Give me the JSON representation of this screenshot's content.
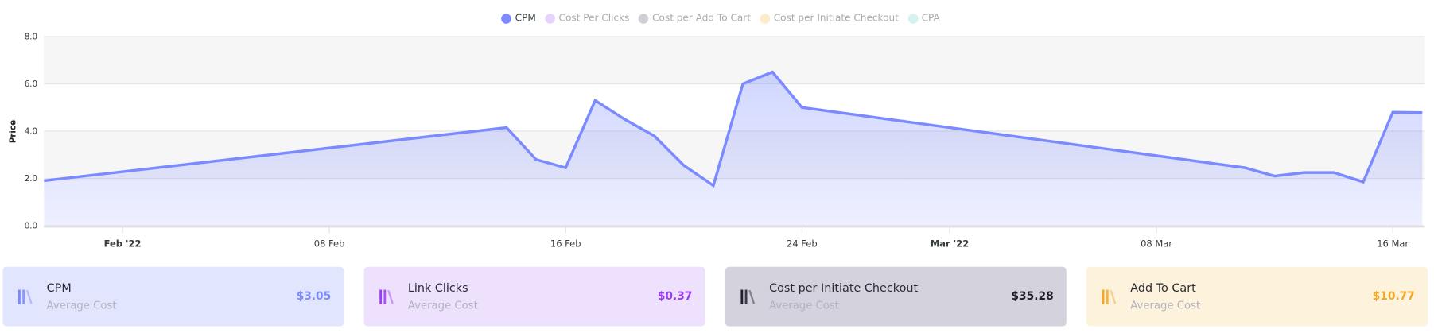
{
  "chart_data": {
    "type": "area",
    "title": "",
    "xlabel": "",
    "ylabel": "Price",
    "ylim": [
      0,
      8
    ],
    "yticks": [
      "0.0",
      "2.0",
      "4.0",
      "6.0",
      "8.0"
    ],
    "xlim": [
      "2022-01-29",
      "2022-03-17"
    ],
    "xticks": [
      {
        "date": "2022-02-01",
        "label": "Feb '22",
        "bold": true
      },
      {
        "date": "2022-02-08",
        "label": "08 Feb",
        "bold": false
      },
      {
        "date": "2022-02-16",
        "label": "16 Feb",
        "bold": false
      },
      {
        "date": "2022-02-24",
        "label": "24 Feb",
        "bold": false
      },
      {
        "date": "2022-03-01",
        "label": "Mar '22",
        "bold": true
      },
      {
        "date": "2022-03-08",
        "label": "08 Mar",
        "bold": false
      },
      {
        "date": "2022-03-16",
        "label": "16 Mar",
        "bold": false
      }
    ],
    "grid": true,
    "legend_position": "top",
    "legend": [
      {
        "name": "CPM",
        "color": "#7b8bff",
        "active": true
      },
      {
        "name": "Cost Per Clicks",
        "color": "#e6d4ff",
        "active": false
      },
      {
        "name": "Cost per Add To Cart",
        "color": "#d0d0d6",
        "active": false
      },
      {
        "name": "Cost per Initiate Checkout",
        "color": "#fdeccb",
        "active": false
      },
      {
        "name": "CPA",
        "color": "#d6f2f0",
        "active": false
      }
    ],
    "series": [
      {
        "name": "CPM",
        "color": "#7b8bff",
        "points": [
          {
            "x": "2022-01-29",
            "y": 1.9
          },
          {
            "x": "2022-02-14",
            "y": 4.15
          },
          {
            "x": "2022-02-15",
            "y": 2.8
          },
          {
            "x": "2022-02-16",
            "y": 2.45
          },
          {
            "x": "2022-02-17",
            "y": 5.3
          },
          {
            "x": "2022-02-18",
            "y": 4.5
          },
          {
            "x": "2022-02-19",
            "y": 3.8
          },
          {
            "x": "2022-02-20",
            "y": 2.55
          },
          {
            "x": "2022-02-21",
            "y": 1.7
          },
          {
            "x": "2022-02-22",
            "y": 6.0
          },
          {
            "x": "2022-02-23",
            "y": 6.5
          },
          {
            "x": "2022-02-24",
            "y": 5.0
          },
          {
            "x": "2022-03-11",
            "y": 2.45
          },
          {
            "x": "2022-03-12",
            "y": 2.1
          },
          {
            "x": "2022-03-13",
            "y": 2.25
          },
          {
            "x": "2022-03-14",
            "y": 2.25
          },
          {
            "x": "2022-03-15",
            "y": 1.85
          },
          {
            "x": "2022-03-16",
            "y": 4.8
          },
          {
            "x": "2022-03-17",
            "y": 4.78
          }
        ]
      }
    ]
  },
  "cards": [
    {
      "title": "CPM",
      "subtitle": "Average Cost",
      "value": "$3.05",
      "bg": "#e1e5fd",
      "accent": "#7b8bff"
    },
    {
      "title": "Link Clicks",
      "subtitle": "Average Cost",
      "value": "$0.37",
      "bg": "#ede1fd",
      "accent": "#9b3cf5"
    },
    {
      "title": "Cost per Initiate Checkout",
      "subtitle": "Average Cost",
      "value": "$35.28",
      "bg": "#d3d2dd",
      "accent": "#1f1f2a"
    },
    {
      "title": "Add To Cart",
      "subtitle": "Average Cost",
      "value": "$10.77",
      "bg": "#fdf3dc",
      "accent": "#f5a623"
    }
  ]
}
